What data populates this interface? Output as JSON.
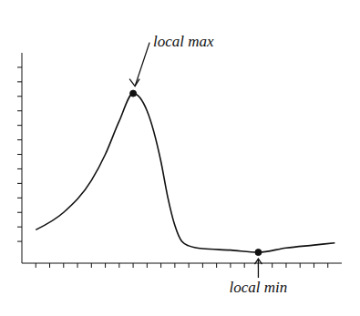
{
  "chart_data": {
    "type": "line",
    "x": [
      -10,
      -8,
      -6,
      -5,
      -4,
      -3,
      -2,
      -1,
      -0.5,
      0,
      0.5,
      1,
      2,
      4,
      6,
      8,
      10,
      11.5
    ],
    "values": [
      0.8,
      2,
      4.2,
      6,
      8.3,
      10.2,
      9,
      5.5,
      3,
      1.1,
      0,
      -0.3,
      -0.5,
      -0.6,
      -0.75,
      -0.45,
      -0.25,
      -0.1
    ],
    "color": "#111111",
    "xlim": [
      -11,
      12
    ],
    "ylim": [
      -1.5,
      13
    ],
    "xticks": [
      -10,
      -9,
      -8,
      -7,
      -6,
      -5,
      -4,
      -3,
      -2,
      -1,
      0,
      1,
      2,
      3,
      4,
      5,
      6,
      7,
      8,
      9,
      10,
      11
    ],
    "yticks": [
      0,
      1,
      2,
      3,
      4,
      5,
      6,
      7,
      8,
      9,
      10,
      11,
      12
    ],
    "tick_labels": false,
    "grid": false,
    "annotations": [
      {
        "text": "local max",
        "x": -3,
        "y": 10.2
      },
      {
        "text": "local min",
        "x": 6,
        "y": -0.75
      }
    ]
  }
}
